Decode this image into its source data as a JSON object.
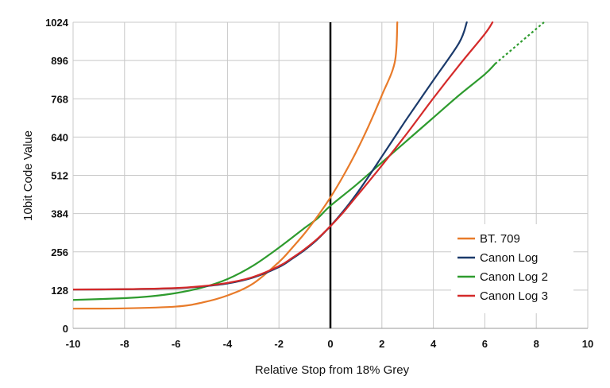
{
  "chart_data": {
    "type": "line",
    "xlabel": "Relative Stop from 18% Grey",
    "ylabel": "10bit Code Value",
    "xlim": [
      -10,
      10
    ],
    "ylim": [
      0,
      1024
    ],
    "xticks": [
      -10,
      -8,
      -6,
      -4,
      -2,
      0,
      2,
      4,
      6,
      8,
      10
    ],
    "yticks": [
      0,
      128,
      256,
      384,
      512,
      640,
      768,
      896,
      1024
    ],
    "grid": true,
    "legend_position": "bottom-right",
    "series": [
      {
        "name": "BT. 709",
        "color": "#e87b2a",
        "x": [
          -10,
          -8,
          -6,
          -5,
          -4,
          -3,
          -2,
          -1.5,
          -1,
          -0.5,
          0,
          0.5,
          1,
          1.5,
          2,
          2.5,
          2.6
        ],
        "y": [
          66,
          67,
          73,
          86,
          110,
          150,
          222,
          268,
          318,
          375,
          438,
          510,
          590,
          680,
          780,
          890,
          1024
        ]
      },
      {
        "name": "Canon Log",
        "color": "#1b3a6b",
        "x": [
          -10,
          -8,
          -6,
          -5,
          -4,
          -3,
          -2,
          -1.5,
          -1,
          -0.5,
          0,
          0.5,
          1,
          1.5,
          2,
          2.5,
          3,
          4,
          5,
          5.3
        ],
        "y": [
          130,
          131,
          134,
          140,
          150,
          170,
          205,
          232,
          262,
          298,
          342,
          392,
          448,
          510,
          575,
          640,
          705,
          830,
          955,
          1024
        ]
      },
      {
        "name": "Canon Log 2",
        "color": "#2e9b2e",
        "x": [
          -10,
          -8,
          -7,
          -6,
          -5,
          -4,
          -3,
          -2,
          -1,
          -0.5,
          0,
          1,
          2,
          3,
          4,
          5,
          6,
          6.4
        ],
        "y": [
          95,
          101,
          107,
          118,
          136,
          165,
          210,
          270,
          336,
          368,
          410,
          480,
          555,
          630,
          705,
          780,
          850,
          885
        ],
        "extension": {
          "x": [
            6.4,
            8.3
          ],
          "y": [
            885,
            1024
          ],
          "dashed": true
        }
      },
      {
        "name": "Canon Log 3",
        "color": "#d42a2a",
        "x": [
          -10,
          -8,
          -6,
          -5,
          -4,
          -3,
          -2,
          -1.5,
          -1,
          -0.5,
          0,
          0.5,
          1,
          1.5,
          2,
          3,
          4,
          5,
          6,
          6.3
        ],
        "y": [
          130,
          131,
          135,
          141,
          152,
          172,
          208,
          235,
          265,
          300,
          342,
          388,
          440,
          492,
          545,
          655,
          770,
          880,
          985,
          1024
        ]
      }
    ]
  }
}
